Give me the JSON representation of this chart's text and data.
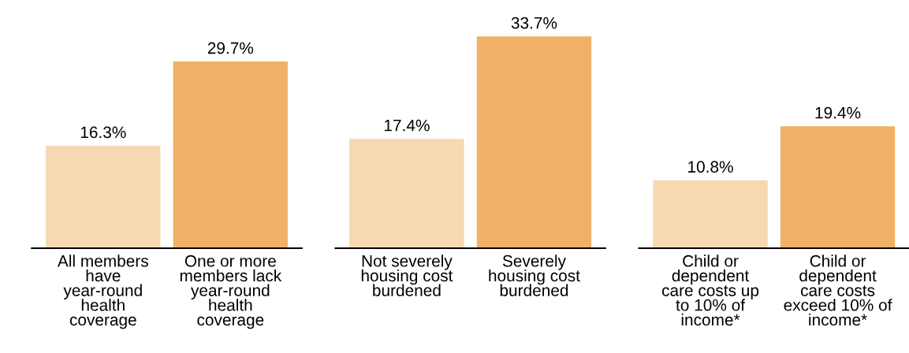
{
  "chart_data": [
    {
      "type": "bar",
      "categories": [
        "All members\nhave\nyear-round\nhealth\ncoverage",
        "One or more\nmembers lack\nyear-round\nhealth\ncoverage"
      ],
      "values": [
        16.3,
        29.7
      ],
      "colors": [
        "#f7d8b2",
        "#f0b166"
      ],
      "value_labels": [
        "16.3%",
        "29.7%"
      ]
    },
    {
      "type": "bar",
      "categories": [
        "Not severely\nhousing cost\nburdened",
        "Severely\nhousing cost\nburdened"
      ],
      "values": [
        17.4,
        33.7
      ],
      "colors": [
        "#f7d8b2",
        "#f0b166"
      ],
      "value_labels": [
        "17.4%",
        "33.7%"
      ]
    },
    {
      "type": "bar",
      "categories": [
        "Child or\ndependent\ncare costs up\nto 10% of\nincome*",
        "Child or\ndependent\ncare costs\nexceed 10% of\nincome*"
      ],
      "values": [
        10.8,
        19.4
      ],
      "colors": [
        "#f7d8b2",
        "#f0b166"
      ],
      "value_labels": [
        "10.8%",
        "19.4%"
      ]
    }
  ]
}
